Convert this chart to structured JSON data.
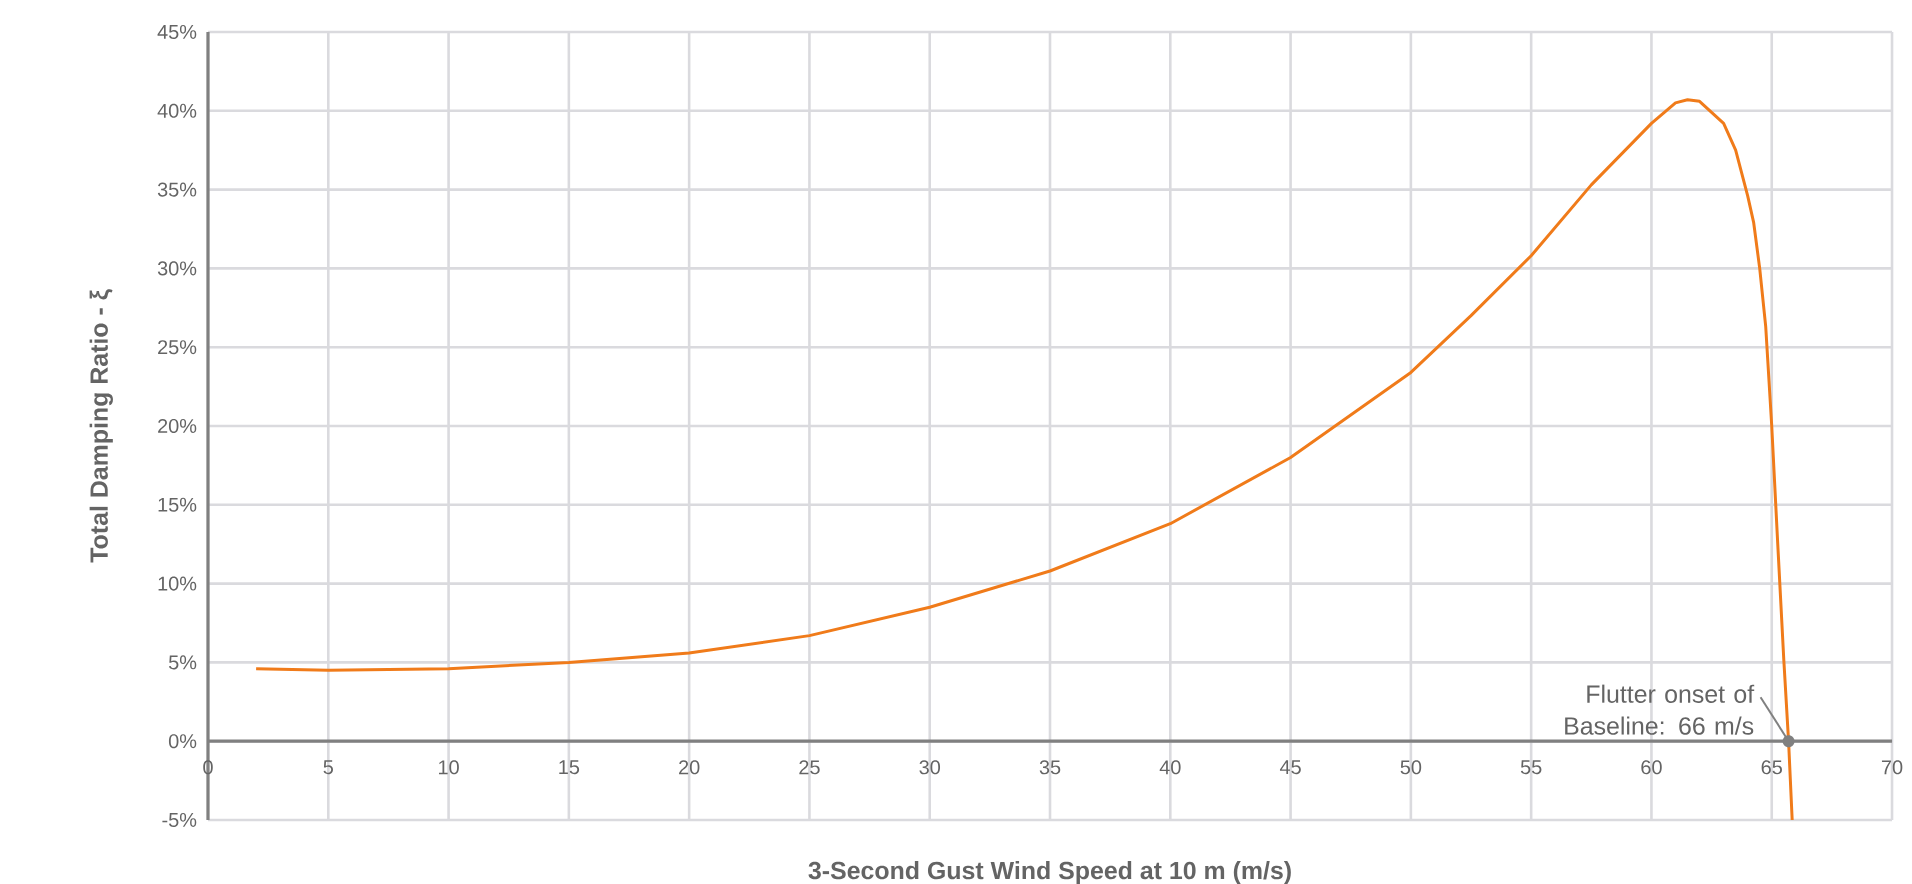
{
  "chart_data": {
    "type": "line",
    "xlabel": "3-Second Gust Wind Speed at 10 m (m/s)",
    "ylabel": "Total Damping Ratio - ξ",
    "xlim": [
      0,
      70
    ],
    "xticks": [
      0,
      5,
      10,
      15,
      20,
      25,
      30,
      35,
      40,
      45,
      50,
      55,
      60,
      65,
      70
    ],
    "ylim": [
      -5,
      45
    ],
    "yticks": [
      {
        "value": -5,
        "label": "-5%"
      },
      {
        "value": 0,
        "label": "0%"
      },
      {
        "value": 5,
        "label": "5%"
      },
      {
        "value": 10,
        "label": "10%"
      },
      {
        "value": 15,
        "label": "15%"
      },
      {
        "value": 20,
        "label": "20%"
      },
      {
        "value": 25,
        "label": "25%"
      },
      {
        "value": 30,
        "label": "30%"
      },
      {
        "value": 35,
        "label": "35%"
      },
      {
        "value": 40,
        "label": "40%"
      },
      {
        "value": 45,
        "label": "45%"
      }
    ],
    "grid": true,
    "marker": "none",
    "line_style": "solid",
    "x": [
      2,
      5,
      10,
      15,
      20,
      25,
      30,
      35,
      40,
      45,
      50,
      52.5,
      55,
      57.5,
      60,
      61,
      61.5,
      62,
      62.5,
      63,
      63.5,
      64,
      64.25,
      64.5,
      64.75,
      65,
      65.25,
      65.5,
      65.7,
      65.85
    ],
    "series": [
      {
        "color": "#f07b1a",
        "values": [
          4.6,
          4.5,
          4.6,
          5.0,
          5.6,
          6.7,
          8.5,
          10.8,
          13.8,
          18.0,
          23.4,
          27.0,
          30.8,
          35.3,
          39.2,
          40.5,
          40.7,
          40.6,
          39.9,
          39.2,
          37.5,
          34.6,
          32.9,
          30.0,
          26.3,
          20.0,
          12.5,
          5.2,
          0,
          -5
        ]
      }
    ],
    "annotations": [
      {
        "text": "Flutter onset of Baseline: 66 m/s",
        "x": 65.7,
        "y": 0
      }
    ]
  }
}
